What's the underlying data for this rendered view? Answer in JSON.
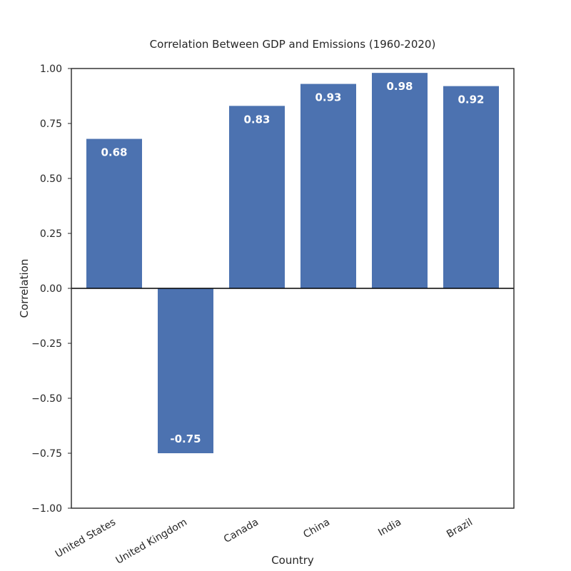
{
  "chart_data": {
    "type": "bar",
    "title": "Correlation Between GDP and Emissions (1960-2020)",
    "xlabel": "Country",
    "ylabel": "Correlation",
    "categories": [
      "United States",
      "United Kingdom",
      "Canada",
      "China",
      "India",
      "Brazil"
    ],
    "values": [
      0.68,
      -0.75,
      0.83,
      0.93,
      0.98,
      0.92
    ],
    "data_labels": [
      "0.68",
      "-0.75",
      "0.83",
      "0.93",
      "0.98",
      "0.92"
    ],
    "ylim": [
      -1.0,
      1.0
    ],
    "yticks": [
      1.0,
      0.75,
      0.5,
      0.25,
      0.0,
      -0.25,
      -0.5,
      -0.75,
      -1.0
    ],
    "ytick_labels": [
      "1.00",
      "0.75",
      "0.50",
      "0.25",
      "0.00",
      "−0.25",
      "−0.50",
      "−0.75",
      "−1.00"
    ],
    "grid": false,
    "zero_line": true,
    "bar_color": "#4c72b0"
  }
}
